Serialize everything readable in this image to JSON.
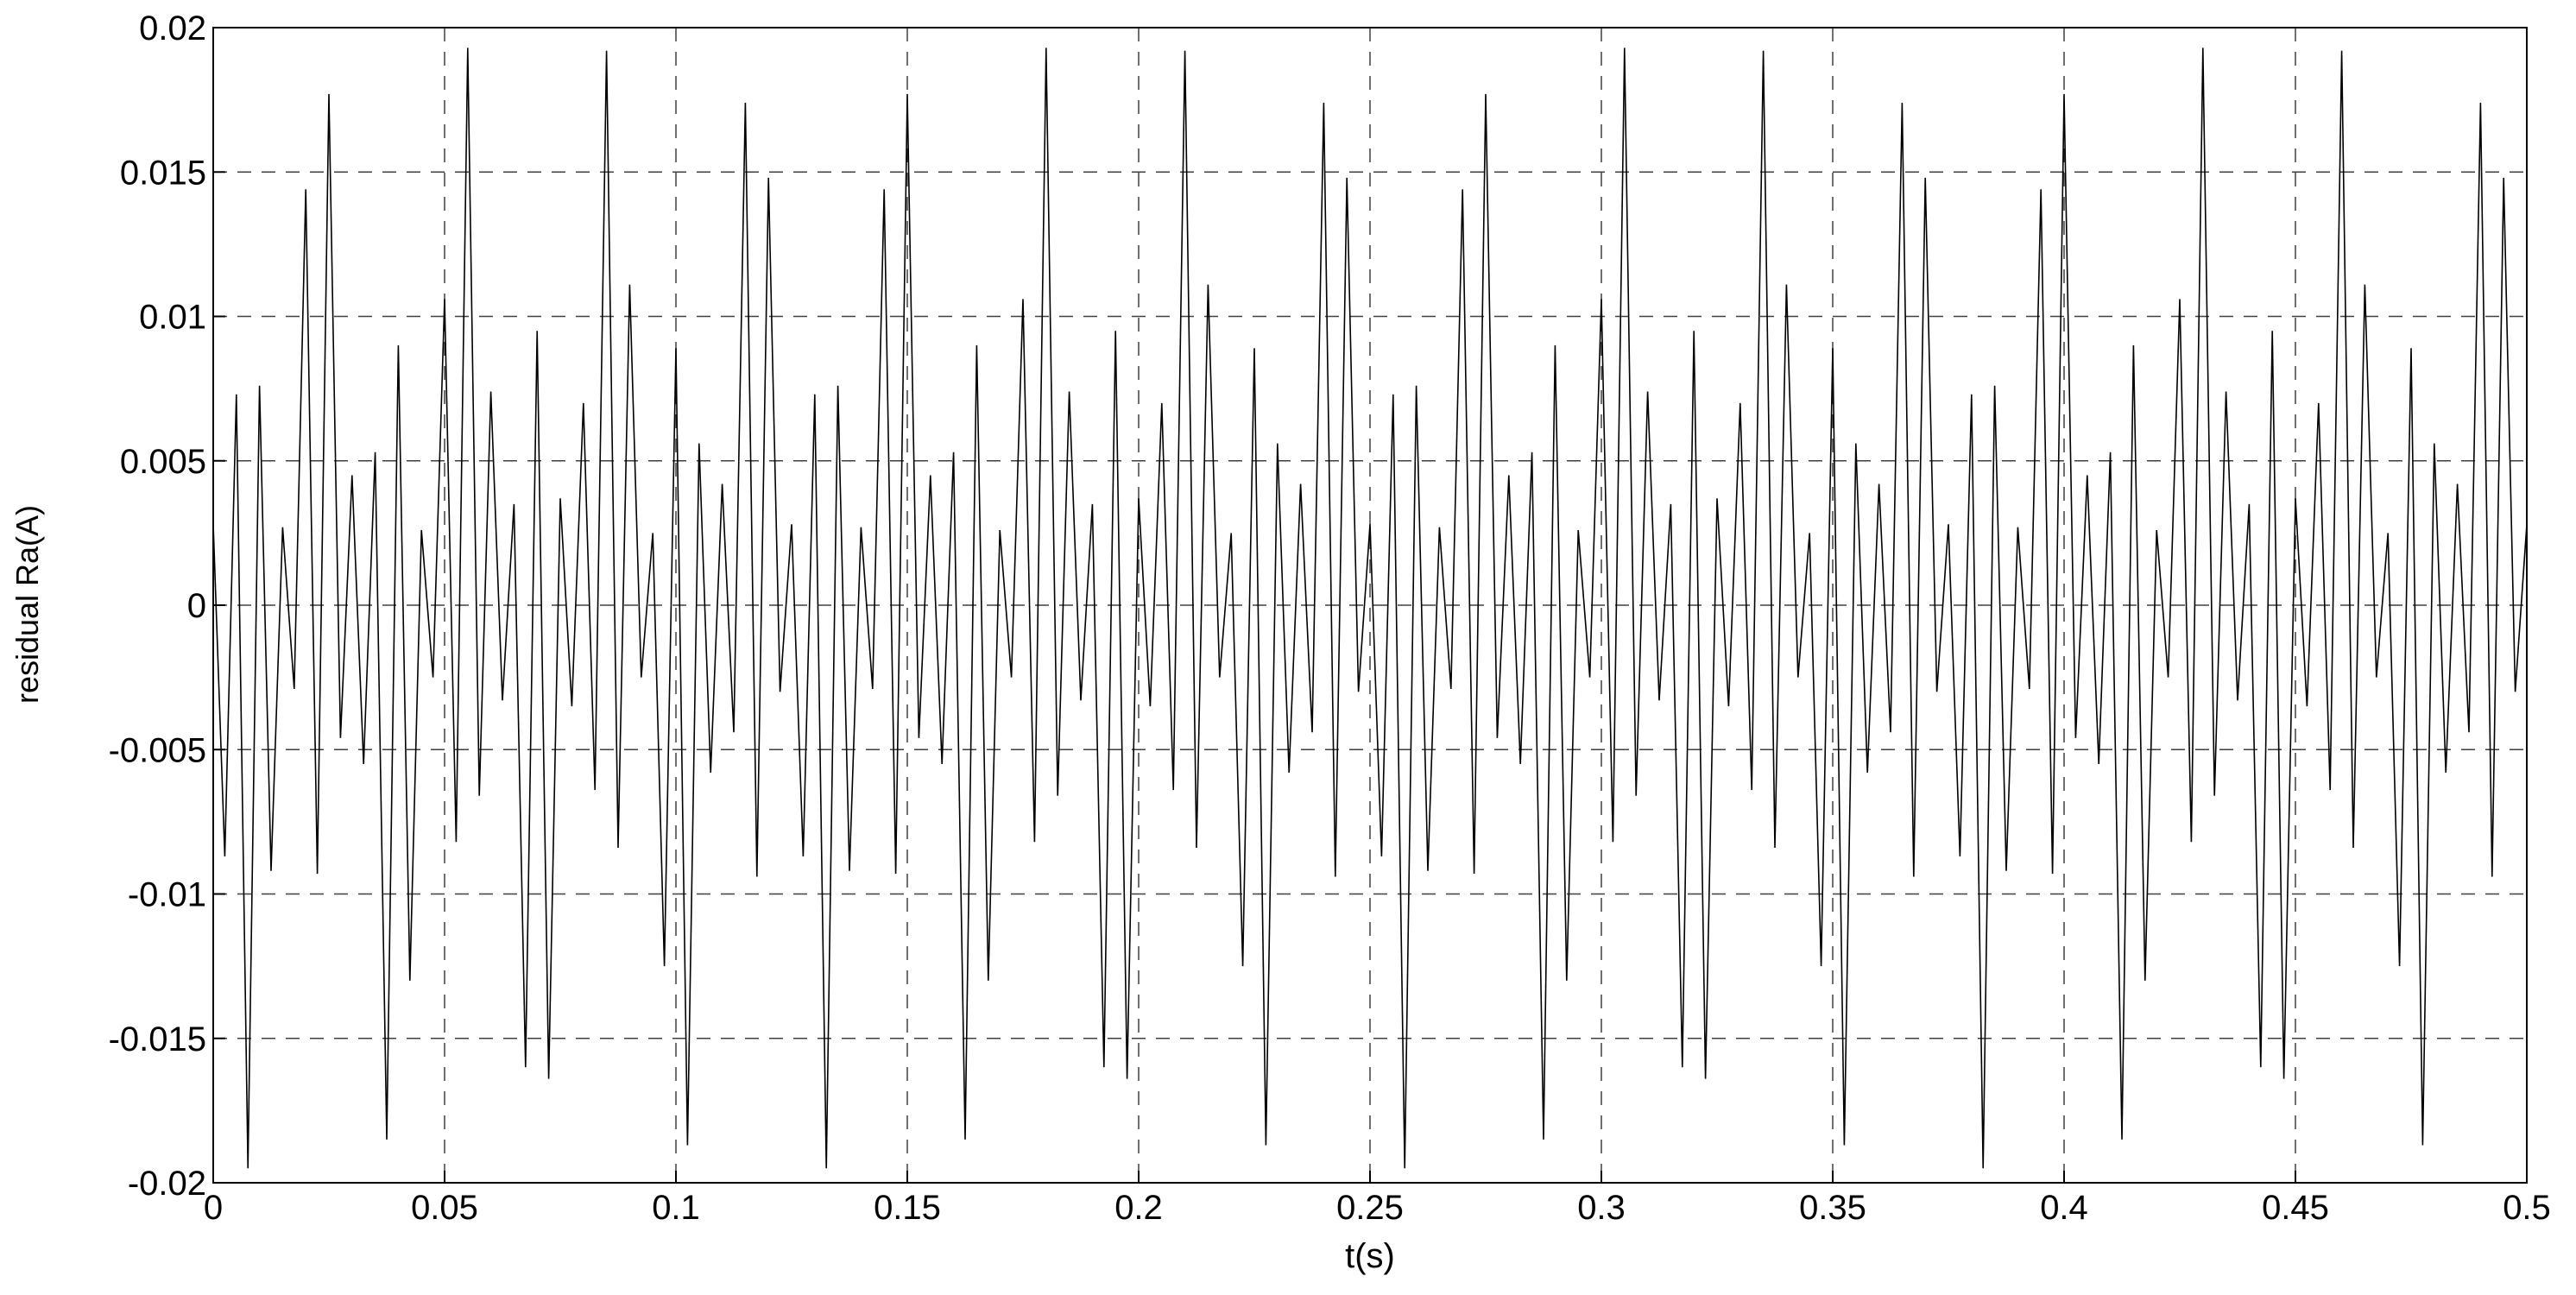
{
  "chart_data": {
    "type": "line",
    "xlabel": "t(s)",
    "ylabel": "residual Ra(A)",
    "xlim": [
      0,
      0.5
    ],
    "ylim": [
      -0.02,
      0.02
    ],
    "xticks": [
      0,
      0.05,
      0.1,
      0.15,
      0.2,
      0.25,
      0.3,
      0.35,
      0.4,
      0.45,
      0.5
    ],
    "yticks": [
      -0.02,
      -0.015,
      -0.01,
      -0.005,
      0,
      0.005,
      0.01,
      0.015,
      0.02
    ],
    "grid": true,
    "x": [
      0,
      0.0025,
      0.005,
      0.0075,
      0.01,
      0.0125,
      0.015,
      0.0175,
      0.02,
      0.0225,
      0.025,
      0.0275,
      0.03,
      0.0325,
      0.035,
      0.0375,
      0.04,
      0.0425,
      0.045,
      0.0475,
      0.05,
      0.0525,
      0.055,
      0.0575,
      0.06,
      0.0625,
      0.065,
      0.0675,
      0.07,
      0.0725,
      0.075,
      0.0775,
      0.08,
      0.0825,
      0.085,
      0.0875,
      0.09,
      0.0925,
      0.095,
      0.0975,
      0.1,
      0.1025,
      0.105,
      0.1075,
      0.11,
      0.1125,
      0.115,
      0.1175,
      0.12,
      0.1225,
      0.125,
      0.1275,
      0.13,
      0.1325,
      0.135,
      0.1375,
      0.14,
      0.1425,
      0.145,
      0.1475,
      0.15,
      0.1525,
      0.155,
      0.1575,
      0.16,
      0.1625,
      0.165,
      0.1675,
      0.17,
      0.1725,
      0.175,
      0.1775,
      0.18,
      0.1825,
      0.185,
      0.1875,
      0.19,
      0.1925,
      0.195,
      0.1975,
      0.2,
      0.2025,
      0.205,
      0.2075,
      0.21,
      0.2125,
      0.215,
      0.2175,
      0.22,
      0.2225,
      0.225,
      0.2275,
      0.23,
      0.2325,
      0.235,
      0.2375,
      0.24,
      0.2425,
      0.245,
      0.2475,
      0.25,
      0.2525,
      0.255,
      0.2575,
      0.26,
      0.2625,
      0.265,
      0.2675,
      0.27,
      0.2725,
      0.275,
      0.2775,
      0.28,
      0.2825,
      0.285,
      0.2875,
      0.29,
      0.2925,
      0.295,
      0.2975,
      0.3,
      0.3025,
      0.305,
      0.3075,
      0.31,
      0.3125,
      0.315,
      0.3175,
      0.32,
      0.3225,
      0.325,
      0.3275,
      0.33,
      0.3325,
      0.335,
      0.3375,
      0.34,
      0.3425,
      0.345,
      0.3475,
      0.35,
      0.3525,
      0.355,
      0.3575,
      0.36,
      0.3625,
      0.365,
      0.3675,
      0.37,
      0.3725,
      0.375,
      0.3775,
      0.38,
      0.3825,
      0.385,
      0.3875,
      0.39,
      0.3925,
      0.395,
      0.3975,
      0.4,
      0.4025,
      0.405,
      0.4075,
      0.41,
      0.4125,
      0.415,
      0.4175,
      0.42,
      0.4225,
      0.425,
      0.4275,
      0.43,
      0.4325,
      0.435,
      0.4375,
      0.44,
      0.4425,
      0.445,
      0.4475,
      0.45,
      0.4525,
      0.455,
      0.4575,
      0.46,
      0.4625,
      0.465,
      0.4675,
      0.47,
      0.4725,
      0.475,
      0.4775,
      0.48,
      0.4825,
      0.485,
      0.4875,
      0.49,
      0.4925,
      0.495,
      0.4975,
      0.5
    ],
    "series": [
      {
        "color": "#000000",
        "values": [
          0.0028,
          -0.0087,
          0.0073,
          -0.0195,
          0.0076,
          -0.0092,
          0.0027,
          -0.0029,
          0.0144,
          -0.0093,
          0.0177,
          -0.0046,
          0.0045,
          -0.0055,
          0.0053,
          -0.0185,
          0.009,
          -0.013,
          0.0026,
          -0.0025,
          0.0106,
          -0.0082,
          0.0193,
          -0.0066,
          0.0074,
          -0.0033,
          0.0035,
          -0.016,
          0.0095,
          -0.0164,
          0.0037,
          -0.0035,
          0.007,
          -0.0064,
          0.0192,
          -0.0084,
          0.0111,
          -0.0025,
          0.0025,
          -0.0125,
          0.0089,
          -0.0187,
          0.0056,
          -0.0058,
          0.0042,
          -0.0044,
          0.0174,
          -0.0094,
          0.0148,
          -0.003,
          0.0028,
          -0.0087,
          0.0073,
          -0.0195,
          0.0076,
          -0.0092,
          0.0027,
          -0.0029,
          0.0144,
          -0.0093,
          0.0177,
          -0.0046,
          0.0045,
          -0.0055,
          0.0053,
          -0.0185,
          0.009,
          -0.013,
          0.0026,
          -0.0025,
          0.0106,
          -0.0082,
          0.0193,
          -0.0066,
          0.0074,
          -0.0033,
          0.0035,
          -0.016,
          0.0095,
          -0.0164,
          0.0037,
          -0.0035,
          0.007,
          -0.0064,
          0.0192,
          -0.0084,
          0.0111,
          -0.0025,
          0.0025,
          -0.0125,
          0.0089,
          -0.0187,
          0.0056,
          -0.0058,
          0.0042,
          -0.0044,
          0.0174,
          -0.0094,
          0.0148,
          -0.003,
          0.0028,
          -0.0087,
          0.0073,
          -0.0195,
          0.0076,
          -0.0092,
          0.0027,
          -0.0029,
          0.0144,
          -0.0093,
          0.0177,
          -0.0046,
          0.0045,
          -0.0055,
          0.0053,
          -0.0185,
          0.009,
          -0.013,
          0.0026,
          -0.0025,
          0.0106,
          -0.0082,
          0.0193,
          -0.0066,
          0.0074,
          -0.0033,
          0.0035,
          -0.016,
          0.0095,
          -0.0164,
          0.0037,
          -0.0035,
          0.007,
          -0.0064,
          0.0192,
          -0.0084,
          0.0111,
          -0.0025,
          0.0025,
          -0.0125,
          0.0089,
          -0.0187,
          0.0056,
          -0.0058,
          0.0042,
          -0.0044,
          0.0174,
          -0.0094,
          0.0148,
          -0.003,
          0.0028,
          -0.0087,
          0.0073,
          -0.0195,
          0.0076,
          -0.0092,
          0.0027,
          -0.0029,
          0.0144,
          -0.0093,
          0.0177,
          -0.0046,
          0.0045,
          -0.0055,
          0.0053,
          -0.0185,
          0.009,
          -0.013,
          0.0026,
          -0.0025,
          0.0106,
          -0.0082,
          0.0193,
          -0.0066,
          0.0074,
          -0.0033,
          0.0035,
          -0.016,
          0.0095,
          -0.0164,
          0.0037,
          -0.0035,
          0.007,
          -0.0064,
          0.0192,
          -0.0084,
          0.0111,
          -0.0025,
          0.0025,
          -0.0125,
          0.0089,
          -0.0187,
          0.0056,
          -0.0058,
          0.0042,
          -0.0044,
          0.0174,
          -0.0094,
          0.0148,
          -0.003,
          0.0028
        ]
      }
    ]
  }
}
